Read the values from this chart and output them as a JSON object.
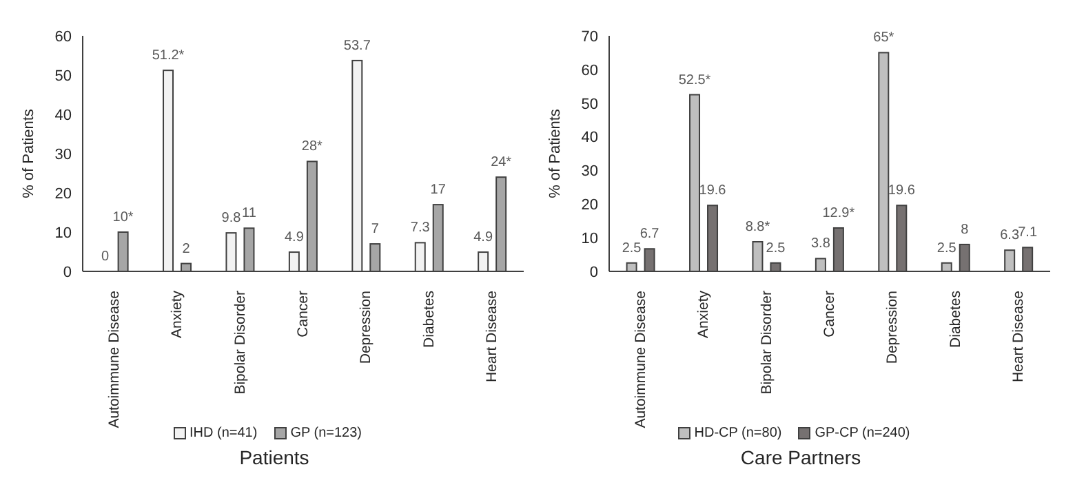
{
  "chart_data": [
    {
      "type": "bar",
      "title": "Patients",
      "ylabel": "% of Patients",
      "categories": [
        "Autoimmune Disease",
        "Anxiety",
        "Bipolar Disorder",
        "Cancer",
        "Depression",
        "Diabetes",
        "Heart Disease"
      ],
      "series": [
        {
          "name": "IHD (n=41)",
          "color": "#f2f2f2",
          "values": [
            0,
            51.2,
            9.8,
            4.9,
            53.7,
            7.3,
            4.9
          ],
          "value_labels": [
            "0",
            "51.2*",
            "9.8",
            "4.9",
            "53.7",
            "7.3",
            "4.9"
          ]
        },
        {
          "name": "GP (n=123)",
          "color": "#a6a6a6",
          "values": [
            10,
            2,
            11,
            28,
            7,
            17,
            24
          ],
          "value_labels": [
            "10*",
            "2",
            "11",
            "28*",
            "7",
            "17",
            "24*"
          ]
        }
      ],
      "ylim": [
        0,
        60
      ],
      "yticks": [
        0,
        10,
        20,
        30,
        40,
        50,
        60
      ],
      "grid": false,
      "legend": "bottom"
    },
    {
      "type": "bar",
      "title": "Care Partners",
      "ylabel": "% of Patients",
      "categories": [
        "Autoimmune Disease",
        "Anxiety",
        "Bipolar Disorder",
        "Cancer",
        "Depression",
        "Diabetes",
        "Heart Disease"
      ],
      "series": [
        {
          "name": "HD-CP (n=80)",
          "color": "#bfbfbf",
          "values": [
            2.5,
            52.5,
            8.8,
            3.8,
            65,
            2.5,
            6.3
          ],
          "value_labels": [
            "2.5",
            "52.5*",
            "8.8*",
            "3.8",
            "65*",
            "2.5",
            "6.3"
          ]
        },
        {
          "name": "GP-CP (n=240)",
          "color": "#767171",
          "values": [
            6.7,
            19.6,
            2.5,
            12.9,
            19.6,
            8,
            7.1
          ],
          "value_labels": [
            "6.7",
            "19.6",
            "2.5",
            "12.9*",
            "19.6",
            "8",
            "7.1"
          ]
        }
      ],
      "ylim": [
        0,
        70
      ],
      "yticks": [
        0,
        10,
        20,
        30,
        40,
        50,
        60,
        70
      ],
      "grid": false,
      "legend": "bottom"
    }
  ]
}
